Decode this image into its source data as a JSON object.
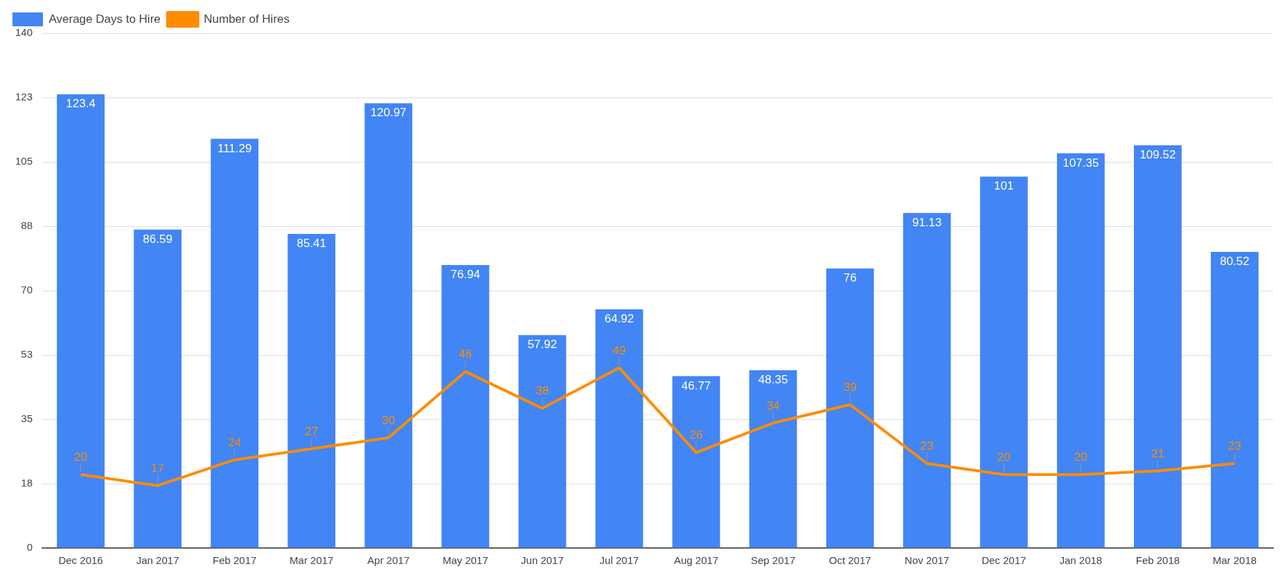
{
  "chart_data": {
    "type": "bar",
    "categories": [
      "Dec 2016",
      "Jan 2017",
      "Feb 2017",
      "Mar 2017",
      "Apr 2017",
      "May 2017",
      "Jun 2017",
      "Jul 2017",
      "Aug 2017",
      "Sep 2017",
      "Oct 2017",
      "Nov 2017",
      "Dec 2017",
      "Jan 2018",
      "Feb 2018",
      "Mar 2018"
    ],
    "series": [
      {
        "name": "Average Days to Hire",
        "color": "#4285f4",
        "values": [
          123.4,
          86.59,
          111.29,
          85.41,
          120.97,
          76.94,
          57.92,
          64.92,
          46.77,
          48.35,
          76,
          91.13,
          101,
          107.35,
          109.52,
          80.52
        ]
      },
      {
        "name": "Number of Hires",
        "type": "line",
        "color": "#ff8c00",
        "values": [
          20,
          17,
          24,
          27,
          30,
          48,
          38,
          49,
          26,
          34,
          39,
          23,
          20,
          20,
          21,
          23
        ]
      }
    ],
    "ylim": [
      0,
      140
    ],
    "yticks": [
      0,
      {
        "value": 17.5,
        "label": "18"
      },
      35,
      {
        "value": 52.5,
        "label": "53"
      },
      70,
      {
        "value": 87.5,
        "label": "88"
      },
      105,
      {
        "value": 122.5,
        "label": "123"
      },
      140
    ],
    "grid": "y",
    "legend": "top left",
    "data_labels": true,
    "marker": "none",
    "line_style": "solid"
  }
}
